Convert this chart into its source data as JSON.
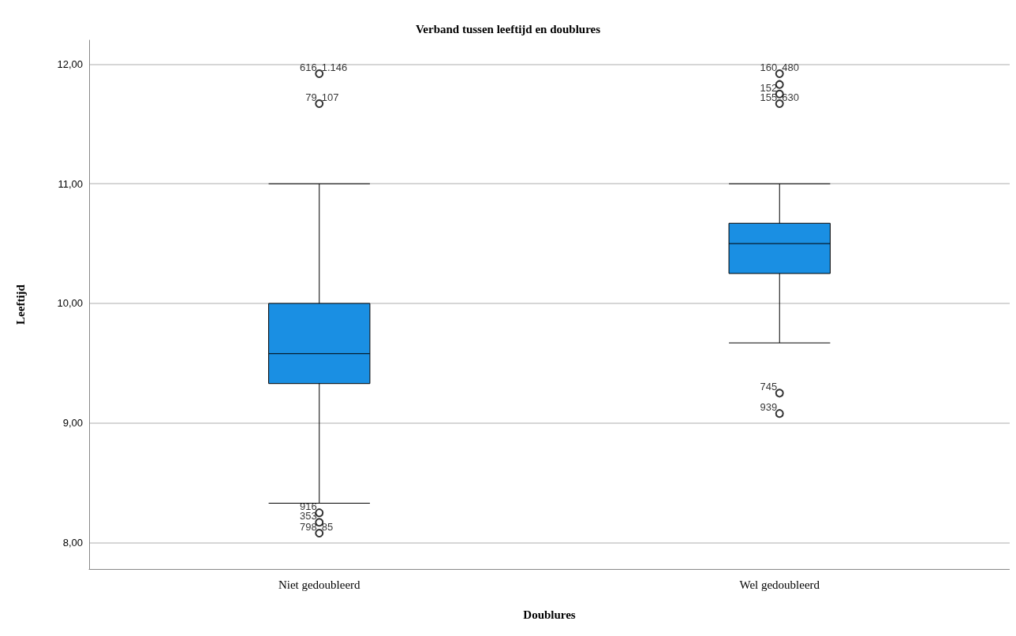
{
  "chart_data": {
    "type": "box",
    "title": "Verband tussen leeftijd en doublures",
    "xlabel": "Doublures",
    "ylabel": "Leeftijd",
    "categories": [
      "Niet gedoubleerd",
      "Wel gedoubleerd"
    ],
    "color": "#1a8fe3",
    "boxes": [
      {
        "low": 8.33,
        "q1": 9.33,
        "median": 9.58,
        "q3": 10.0,
        "high": 11.0
      },
      {
        "low": 9.67,
        "q1": 10.25,
        "median": 10.5,
        "q3": 10.67,
        "high": 11.0
      }
    ],
    "series": [
      {
        "type": "scatter",
        "color": "#000000",
        "x": [
          "Niet gedoubleerd",
          "Niet gedoubleerd",
          "Niet gedoubleerd",
          "Niet gedoubleerd",
          "Niet gedoubleerd",
          "Wel gedoubleerd",
          "Wel gedoubleerd",
          "Wel gedoubleerd",
          "Wel gedoubleerd",
          "Wel gedoubleerd",
          "Wel gedoubleerd"
        ],
        "values": [
          11.92,
          11.67,
          8.25,
          8.17,
          8.08,
          11.92,
          11.83,
          11.75,
          11.67,
          9.25,
          9.08
        ]
      }
    ],
    "ylim": [
      7.78,
      12.2
    ],
    "yticks": [
      {
        "value": 8,
        "label": "8,00"
      },
      {
        "value": 9,
        "label": "9,00"
      },
      {
        "value": 10,
        "label": "10,00"
      },
      {
        "value": 11,
        "label": "11,00"
      },
      {
        "value": 12,
        "label": "12,00"
      }
    ],
    "grid": "y",
    "marker": "circle",
    "annotations": [
      {
        "text": "616",
        "x": "Niet gedoubleerd",
        "y": 11.92
      },
      {
        "text": "1.146",
        "x": "Niet gedoubleerd",
        "y": 11.92
      },
      {
        "text": "79",
        "x": "Niet gedoubleerd",
        "y": 11.67
      },
      {
        "text": "107",
        "x": "Niet gedoubleerd",
        "y": 11.67
      },
      {
        "text": "916",
        "x": "Niet gedoubleerd",
        "y": 8.25
      },
      {
        "text": "353",
        "x": "Niet gedoubleerd",
        "y": 8.17
      },
      {
        "text": "798",
        "x": "Niet gedoubleerd",
        "y": 8.08
      },
      {
        "text": "85",
        "x": "Niet gedoubleerd",
        "y": 8.08
      },
      {
        "text": "160",
        "x": "Wel gedoubleerd",
        "y": 11.92
      },
      {
        "text": "480",
        "x": "Wel gedoubleerd",
        "y": 11.92
      },
      {
        "text": "152",
        "x": "Wel gedoubleerd",
        "y": 11.75
      },
      {
        "text": "155",
        "x": "Wel gedoubleerd",
        "y": 11.67
      },
      {
        "text": "630",
        "x": "Wel gedoubleerd",
        "y": 11.67
      },
      {
        "text": "745",
        "x": "Wel gedoubleerd",
        "y": 9.25
      },
      {
        "text": "939",
        "x": "Wel gedoubleerd",
        "y": 9.08
      }
    ]
  }
}
